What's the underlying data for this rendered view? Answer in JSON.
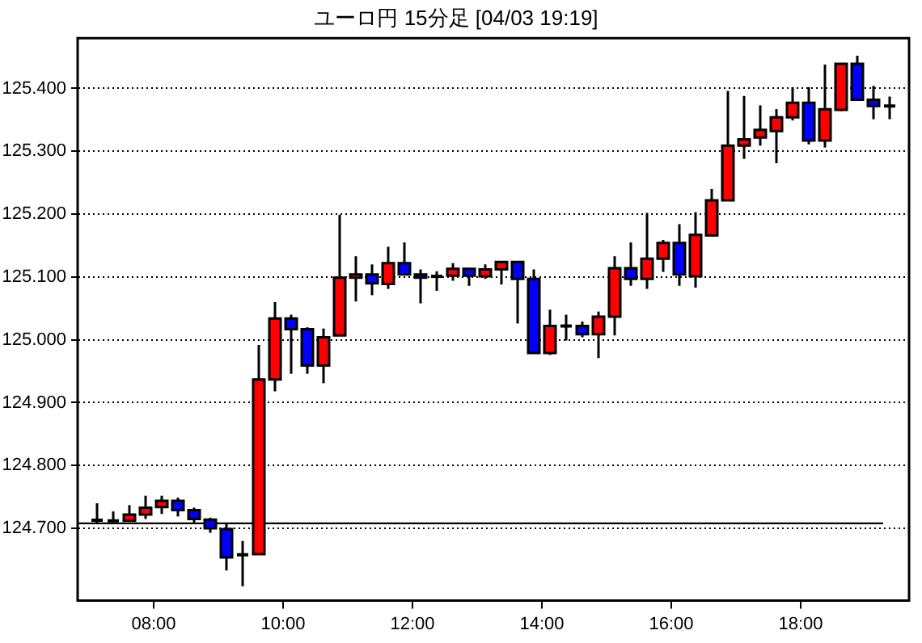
{
  "chart_data": {
    "type": "candlestick",
    "title": "ユーロ円 15分足 [04/03 19:19]",
    "x": [
      7.125,
      7.375,
      7.625,
      7.875,
      8.125,
      8.375,
      8.625,
      8.875,
      9.125,
      9.375,
      9.625,
      9.875,
      10.125,
      10.375,
      10.625,
      10.875,
      11.125,
      11.375,
      11.625,
      11.875,
      12.125,
      12.375,
      12.625,
      12.875,
      13.125,
      13.375,
      13.625,
      13.875,
      14.125,
      14.375,
      14.625,
      14.875,
      15.125,
      15.375,
      15.625,
      15.875,
      16.125,
      16.375,
      16.625,
      16.875,
      17.125,
      17.375,
      17.625,
      17.875,
      18.125,
      18.375,
      18.625,
      18.875,
      19.125,
      19.375
    ],
    "ohlc": [
      [
        124.713,
        124.74,
        124.708,
        124.713
      ],
      [
        124.712,
        124.727,
        124.712,
        124.712
      ],
      [
        124.712,
        124.737,
        124.712,
        124.722
      ],
      [
        124.722,
        124.752,
        124.715,
        124.733
      ],
      [
        124.734,
        124.752,
        124.723,
        124.744
      ],
      [
        124.744,
        124.749,
        124.719,
        124.729
      ],
      [
        124.729,
        124.733,
        124.708,
        124.715
      ],
      [
        124.714,
        124.717,
        124.693,
        124.7
      ],
      [
        124.699,
        124.708,
        124.633,
        124.654
      ],
      [
        124.658,
        124.68,
        124.608,
        124.658
      ],
      [
        124.659,
        124.992,
        124.659,
        124.937
      ],
      [
        124.937,
        125.06,
        124.918,
        125.034
      ],
      [
        125.034,
        125.04,
        124.946,
        125.017
      ],
      [
        125.017,
        125.02,
        124.946,
        124.959
      ],
      [
        124.959,
        125.018,
        124.931,
        125.004
      ],
      [
        125.007,
        125.199,
        125.007,
        125.099
      ],
      [
        125.099,
        125.133,
        125.061,
        125.104
      ],
      [
        125.104,
        125.12,
        125.071,
        125.09
      ],
      [
        125.089,
        125.148,
        125.081,
        125.122
      ],
      [
        125.122,
        125.155,
        125.104,
        125.104
      ],
      [
        125.104,
        125.112,
        125.058,
        125.099
      ],
      [
        125.101,
        125.109,
        125.078,
        125.101
      ],
      [
        125.102,
        125.122,
        125.094,
        125.113
      ],
      [
        125.113,
        125.113,
        125.086,
        125.102
      ],
      [
        125.101,
        125.12,
        125.097,
        125.112
      ],
      [
        125.112,
        125.124,
        125.088,
        125.124
      ],
      [
        125.124,
        125.124,
        125.026,
        125.097
      ],
      [
        125.097,
        125.112,
        124.979,
        124.979
      ],
      [
        124.979,
        125.048,
        124.976,
        125.022
      ],
      [
        125.022,
        125.04,
        124.999,
        125.022
      ],
      [
        125.022,
        125.029,
        125.004,
        125.009
      ],
      [
        125.009,
        125.045,
        124.971,
        125.037
      ],
      [
        125.037,
        125.133,
        125.007,
        125.114
      ],
      [
        125.114,
        125.155,
        125.086,
        125.097
      ],
      [
        125.097,
        125.202,
        125.081,
        125.129
      ],
      [
        125.129,
        125.159,
        125.108,
        125.154
      ],
      [
        125.154,
        125.184,
        125.086,
        125.104
      ],
      [
        125.101,
        125.203,
        125.083,
        125.167
      ],
      [
        125.166,
        125.24,
        125.164,
        125.222
      ],
      [
        125.222,
        125.396,
        125.222,
        125.309
      ],
      [
        125.309,
        125.388,
        125.288,
        125.319
      ],
      [
        125.322,
        125.373,
        125.309,
        125.334
      ],
      [
        125.332,
        125.367,
        125.281,
        125.354
      ],
      [
        125.354,
        125.402,
        125.349,
        125.377
      ],
      [
        125.377,
        125.402,
        125.311,
        125.317
      ],
      [
        125.317,
        125.438,
        125.306,
        125.367
      ],
      [
        125.366,
        125.44,
        125.364,
        125.439
      ],
      [
        125.439,
        125.452,
        125.382,
        125.382
      ],
      [
        125.382,
        125.404,
        125.351,
        125.372
      ],
      [
        125.372,
        125.387,
        125.351,
        125.372
      ]
    ],
    "colors": [
      "#000000",
      "#000000",
      "#ff0000",
      "#ff0000",
      "#ff0000",
      "#0000ff",
      "#0000ff",
      "#0000ff",
      "#0000ff",
      "#000000",
      "#ff0000",
      "#ff0000",
      "#0000ff",
      "#0000ff",
      "#ff0000",
      "#ff0000",
      "#ff0000",
      "#0000ff",
      "#ff0000",
      "#0000ff",
      "#0000ff",
      "#000000",
      "#ff0000",
      "#0000ff",
      "#ff0000",
      "#ff0000",
      "#0000ff",
      "#0000ff",
      "#ff0000",
      "#000000",
      "#0000ff",
      "#ff0000",
      "#ff0000",
      "#0000ff",
      "#ff0000",
      "#ff0000",
      "#0000ff",
      "#ff0000",
      "#ff0000",
      "#ff0000",
      "#ff0000",
      "#ff0000",
      "#ff0000",
      "#ff0000",
      "#0000ff",
      "#ff0000",
      "#ff0000",
      "#0000ff",
      "#0000ff",
      "#000000"
    ],
    "xlim": [
      6.825,
      19.675
    ],
    "xticks": [
      {
        "value": 8,
        "label": "08:00"
      },
      {
        "value": 10,
        "label": "10:00"
      },
      {
        "value": 12,
        "label": "12:00"
      },
      {
        "value": 14,
        "label": "14:00"
      },
      {
        "value": 16,
        "label": "16:00"
      },
      {
        "value": 18,
        "label": "18:00"
      }
    ],
    "ylim": [
      124.585,
      125.48
    ],
    "yticks": [
      {
        "value": 124.7,
        "label": "124.700"
      },
      {
        "value": 124.8,
        "label": "124.800"
      },
      {
        "value": 124.9,
        "label": "124.900"
      },
      {
        "value": 125.0,
        "label": "125.000"
      },
      {
        "value": 125.1,
        "label": "125.100"
      },
      {
        "value": 125.2,
        "label": "125.200"
      },
      {
        "value": 125.3,
        "label": "125.300"
      },
      {
        "value": 125.4,
        "label": "125.400"
      }
    ],
    "grid": "y",
    "ref_lines": [
      {
        "axis": "y",
        "value": 124.708,
        "color": "#000000"
      }
    ]
  }
}
